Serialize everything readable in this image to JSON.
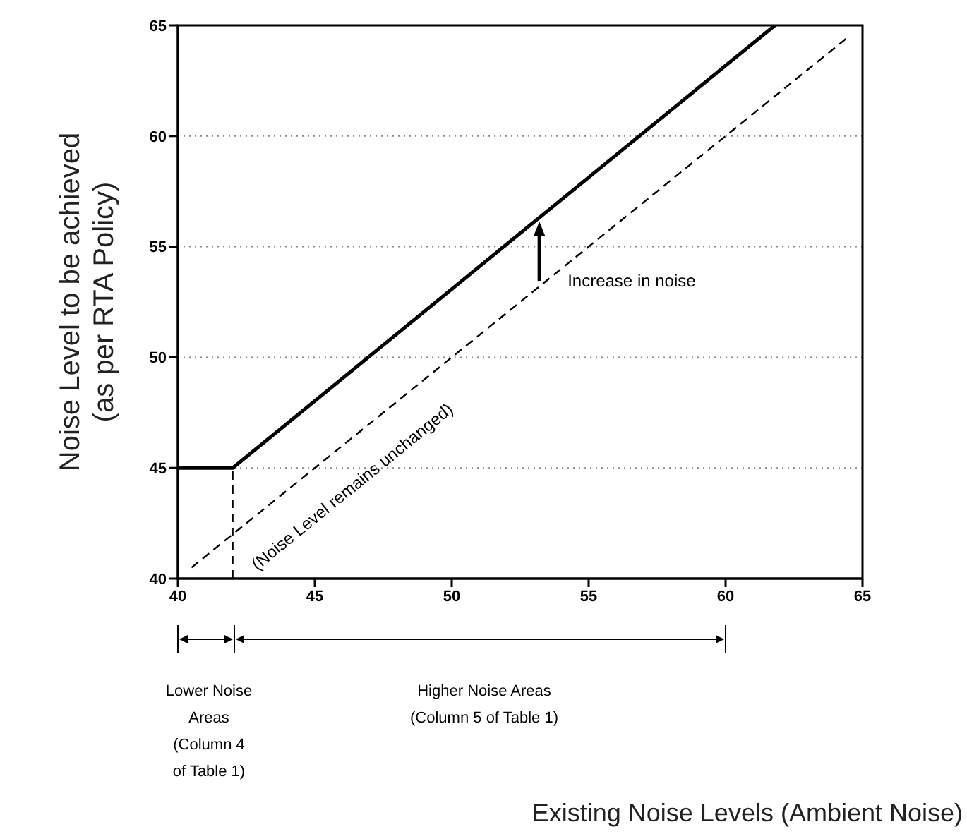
{
  "chart_data": {
    "type": "line",
    "ylabel": "Noise Level to be achieved (as per RTA Policy)",
    "xlim": [
      40,
      65
    ],
    "ylim": [
      40,
      65
    ],
    "xticks": [
      40,
      45,
      50,
      55,
      60,
      65
    ],
    "yticks": [
      40,
      45,
      50,
      55,
      60,
      65
    ],
    "grid": "y",
    "marker": "none",
    "series": [
      {
        "color": "#000000",
        "line_style": "solid",
        "x": [
          40,
          42,
          61.8
        ],
        "values": [
          45,
          45,
          65
        ]
      },
      {
        "color": "#000000",
        "line_style": "dashed",
        "x": [
          40.5,
          64.5
        ],
        "values": [
          40.5,
          64.5
        ]
      },
      {
        "color": "#000000",
        "line_style": "dashed",
        "x": [
          42,
          42
        ],
        "values": [
          40,
          45
        ]
      }
    ],
    "annotations": [
      {
        "text": "Increase in noise",
        "x": 53.2,
        "y": 53.2
      },
      "(Noise Level remains unchanged)",
      "Lower Noise Areas (Column 4 of Table 1)",
      "Higher Noise Areas (Column 5 of Table 1)",
      "Existing Noise Levels (Ambient Noise)"
    ]
  }
}
